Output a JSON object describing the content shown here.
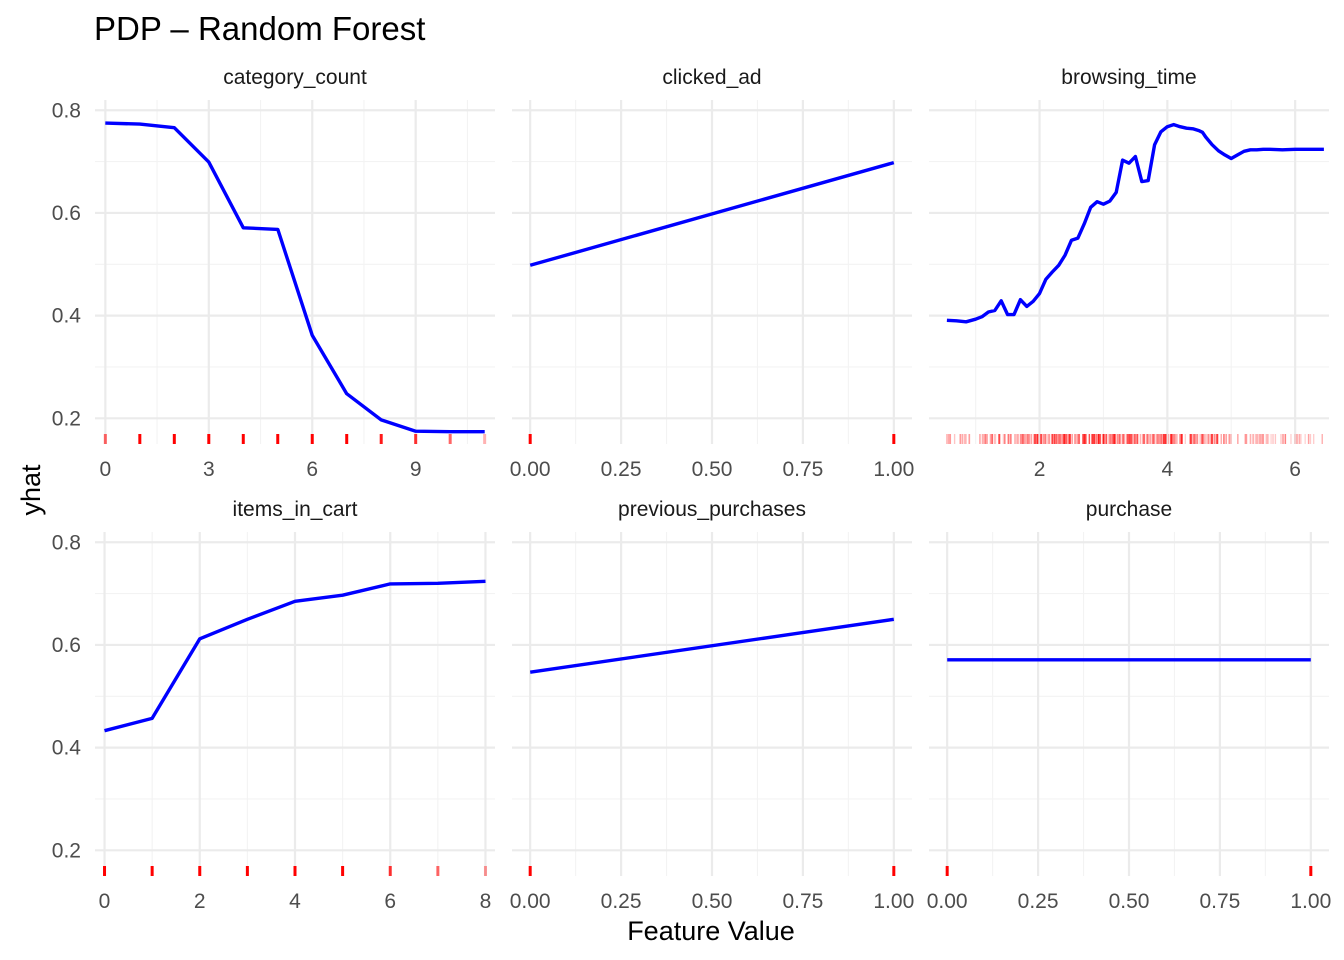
{
  "chart_data": {
    "type": "line",
    "title": "PDP – Random Forest",
    "xlabel": "Feature Value",
    "ylabel": "yhat",
    "ylim": [
      0.15,
      0.82
    ],
    "yticks": [
      0.2,
      0.4,
      0.6,
      0.8
    ],
    "ytick_labels": [
      "0.2",
      "0.4",
      "0.6",
      "0.8"
    ],
    "grid": true,
    "line_color": "#0000ff",
    "rug_color": "#ff0000",
    "panels": [
      {
        "name": "category_count",
        "xlim": [
          -0.3,
          11.3
        ],
        "xticks": [
          0,
          3,
          6,
          9
        ],
        "xtick_labels": [
          "0",
          "3",
          "6",
          "9"
        ],
        "x": [
          0,
          1,
          2,
          3,
          4,
          5,
          6,
          7,
          8,
          9,
          10,
          11
        ],
        "y": [
          0.775,
          0.773,
          0.766,
          0.699,
          0.571,
          0.568,
          0.362,
          0.248,
          0.197,
          0.175,
          0.174,
          0.174
        ],
        "rug": [
          0,
          1,
          2,
          3,
          4,
          5,
          6,
          7,
          8,
          9,
          10,
          11
        ],
        "rug_alpha": [
          0.6,
          1,
          1,
          1,
          1,
          1,
          1,
          1,
          0.9,
          0.8,
          0.6,
          0.3
        ]
      },
      {
        "name": "clicked_ad",
        "xlim": [
          -0.05,
          1.05
        ],
        "xticks": [
          0,
          0.25,
          0.5,
          0.75,
          1
        ],
        "xtick_labels": [
          "0.00",
          "0.25",
          "0.50",
          "0.75",
          "1.00"
        ],
        "x": [
          0,
          1
        ],
        "y": [
          0.498,
          0.698
        ],
        "rug": [
          0,
          1
        ],
        "rug_alpha": [
          1,
          1
        ]
      },
      {
        "name": "browsing_time",
        "xlim": [
          0.27,
          6.53
        ],
        "xticks": [
          2,
          4,
          6
        ],
        "xtick_labels": [
          "2",
          "4",
          "6"
        ],
        "x": [
          0.55,
          0.7,
          0.85,
          1.0,
          1.1,
          1.2,
          1.3,
          1.4,
          1.5,
          1.6,
          1.7,
          1.8,
          1.9,
          2.0,
          2.1,
          2.2,
          2.3,
          2.4,
          2.5,
          2.6,
          2.7,
          2.8,
          2.9,
          3.0,
          3.1,
          3.2,
          3.3,
          3.4,
          3.5,
          3.6,
          3.7,
          3.8,
          3.9,
          4.0,
          4.1,
          4.2,
          4.3,
          4.4,
          4.5,
          4.55,
          4.6,
          4.7,
          4.8,
          4.9,
          5.0,
          5.1,
          5.2,
          5.3,
          5.4,
          5.5,
          5.6,
          5.8,
          6.0,
          6.2,
          6.45
        ],
        "y": [
          0.391,
          0.39,
          0.388,
          0.393,
          0.398,
          0.407,
          0.41,
          0.429,
          0.402,
          0.402,
          0.431,
          0.418,
          0.428,
          0.443,
          0.471,
          0.485,
          0.498,
          0.518,
          0.547,
          0.551,
          0.579,
          0.611,
          0.622,
          0.617,
          0.623,
          0.64,
          0.703,
          0.697,
          0.71,
          0.661,
          0.663,
          0.733,
          0.758,
          0.768,
          0.772,
          0.768,
          0.765,
          0.764,
          0.76,
          0.757,
          0.748,
          0.733,
          0.721,
          0.713,
          0.706,
          0.713,
          0.72,
          0.723,
          0.723,
          0.724,
          0.724,
          0.723,
          0.724,
          0.724,
          0.724
        ],
        "rug_density": [
          [
            0.5,
            1.1,
            0.3
          ],
          [
            1.1,
            1.7,
            0.55
          ],
          [
            1.7,
            2.2,
            0.8
          ],
          [
            2.2,
            4.3,
            1.0
          ],
          [
            4.3,
            4.9,
            0.75
          ],
          [
            4.9,
            5.6,
            0.4
          ],
          [
            5.6,
            6.5,
            0.25
          ]
        ]
      },
      {
        "name": "items_in_cart",
        "xlim": [
          -0.2,
          8.2
        ],
        "xticks": [
          0,
          2,
          4,
          6,
          8
        ],
        "xtick_labels": [
          "0",
          "2",
          "4",
          "6",
          "8"
        ],
        "x": [
          0,
          1,
          2,
          3,
          4,
          5,
          6,
          7,
          8
        ],
        "y": [
          0.433,
          0.457,
          0.612,
          0.65,
          0.685,
          0.697,
          0.719,
          0.72,
          0.724
        ],
        "rug": [
          0,
          1,
          2,
          3,
          4,
          5,
          6,
          7,
          8
        ],
        "rug_alpha": [
          1,
          1,
          1,
          1,
          1,
          1,
          0.8,
          0.6,
          0.4
        ]
      },
      {
        "name": "previous_purchases",
        "xlim": [
          -0.05,
          1.05
        ],
        "xticks": [
          0,
          0.25,
          0.5,
          0.75,
          1
        ],
        "xtick_labels": [
          "0.00",
          "0.25",
          "0.50",
          "0.75",
          "1.00"
        ],
        "x": [
          0,
          1
        ],
        "y": [
          0.547,
          0.65
        ],
        "rug": [
          0,
          1
        ],
        "rug_alpha": [
          1,
          1
        ]
      },
      {
        "name": "purchase",
        "xlim": [
          -0.05,
          1.05
        ],
        "xticks": [
          0,
          0.25,
          0.5,
          0.75,
          1
        ],
        "xtick_labels": [
          "0.00",
          "0.25",
          "0.50",
          "0.75",
          "1.00"
        ],
        "x": [
          0,
          1
        ],
        "y": [
          0.571,
          0.571
        ],
        "rug": [
          0,
          1
        ],
        "rug_alpha": [
          1,
          1
        ]
      }
    ]
  }
}
